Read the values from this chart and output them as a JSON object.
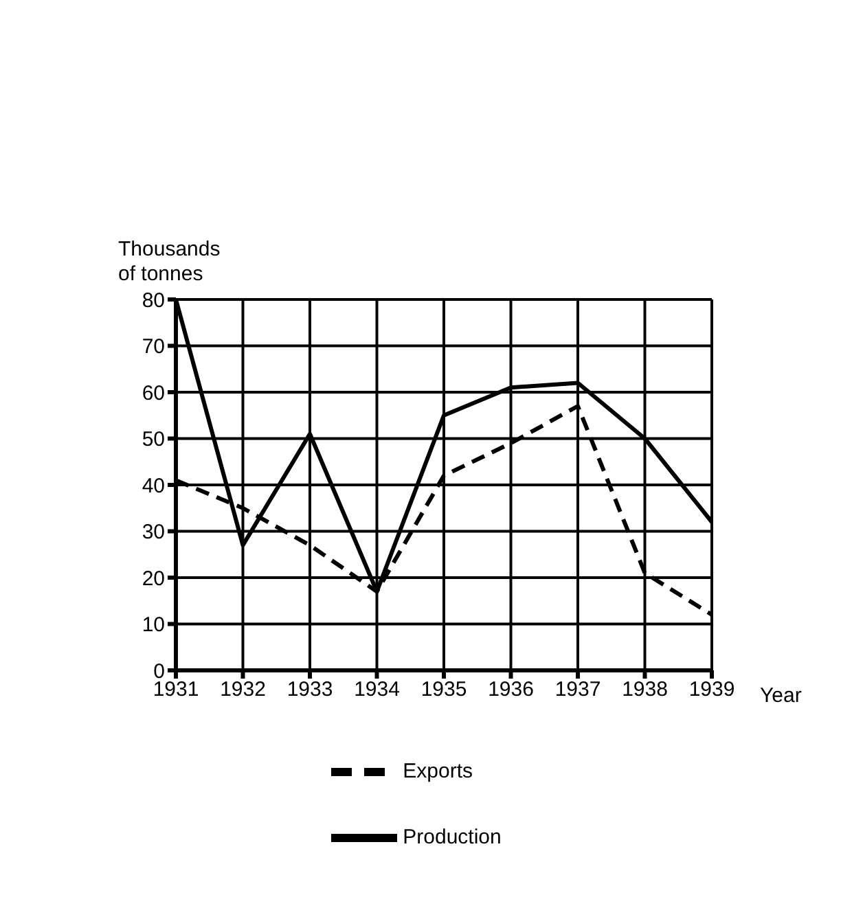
{
  "chart_data": {
    "type": "line",
    "ylabel": "Thousands of tonnes",
    "xlabel": "Year",
    "categories": [
      "1931",
      "1932",
      "1933",
      "1934",
      "1935",
      "1936",
      "1937",
      "1938",
      "1939"
    ],
    "series": [
      {
        "name": "Production",
        "color": "#000000",
        "line_style": "solid",
        "values": [
          80,
          27,
          51,
          17,
          55,
          61,
          62,
          50,
          32
        ]
      },
      {
        "name": "Exports",
        "color": "#000000",
        "line_style": "dashed",
        "values": [
          41,
          35,
          27,
          17,
          42,
          49,
          57,
          21,
          12
        ]
      }
    ],
    "ylim": [
      0,
      80
    ],
    "yticks": [
      0,
      10,
      20,
      30,
      40,
      50,
      60,
      70,
      80
    ],
    "grid": true,
    "legend": "bottom",
    "marker": "none"
  }
}
